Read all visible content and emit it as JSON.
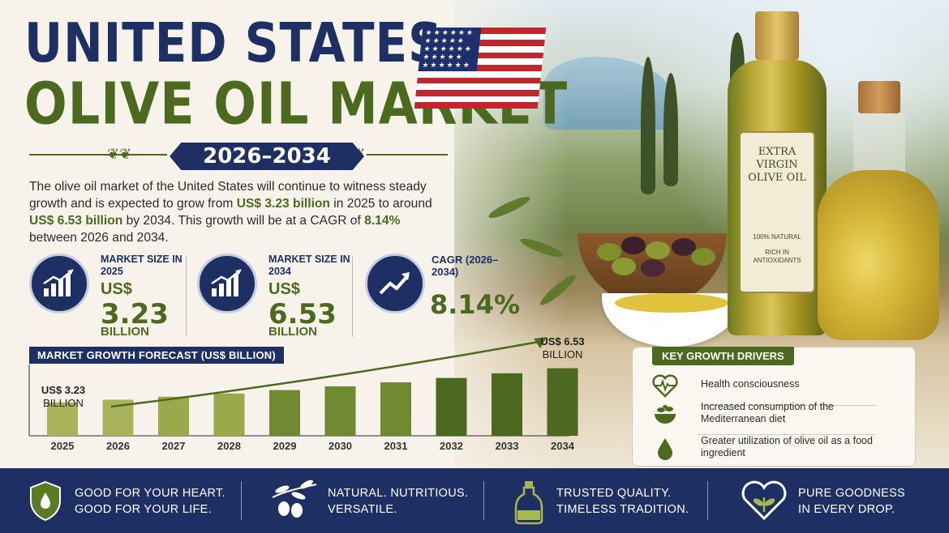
{
  "title": {
    "line1": "UNITED STATES",
    "line2": "OLIVE OIL MARKET",
    "years": "2026–2034"
  },
  "intro": {
    "p1": "The olive oil market of the United States will continue to witness steady growth and is expected to grow from ",
    "v1": "US$ 3.23 billion",
    "p2": " in 2025 to around ",
    "v2": "US$ 6.53 billion",
    "p3": " by 2034. This growth will be at a CAGR of ",
    "v3": "8.14%",
    "p4": " between 2026 and 2034."
  },
  "stats": [
    {
      "label": "MARKET SIZE IN 2025",
      "currency": "US$",
      "value": "3.23",
      "unit": "BILLION"
    },
    {
      "label": "MARKET SIZE IN 2034",
      "currency": "US$",
      "value": "6.53",
      "unit": "BILLION"
    },
    {
      "label": "CAGR (2026–2034)",
      "value": "8.14%"
    }
  ],
  "chart_data": {
    "type": "bar",
    "title": "MARKET GROWTH FORECAST (US$ BILLION)",
    "categories": [
      "2025",
      "2026",
      "2027",
      "2028",
      "2029",
      "2030",
      "2031",
      "2032",
      "2033",
      "2034"
    ],
    "values": [
      3.23,
      3.49,
      3.78,
      4.09,
      4.42,
      4.78,
      5.17,
      5.59,
      6.04,
      6.53
    ],
    "annotations": {
      "first": [
        "US$ 3.23",
        "BILLION"
      ],
      "last": [
        "US$ 6.53",
        "BILLION"
      ]
    },
    "colors": {
      "bar_light": "#a9b45a",
      "bar_dark": "#4b6a1f",
      "arrow": "#4b6a1f"
    },
    "grid": false
  },
  "drivers": {
    "title": "KEY GROWTH DRIVERS",
    "items": [
      {
        "icon": "heart-pulse-icon",
        "text": "Health consciousness"
      },
      {
        "icon": "salad-bowl-icon",
        "text": "Increased consumption of the Mediterranean diet"
      },
      {
        "icon": "oil-drop-icon",
        "text": "Greater utilization of olive oil as a food ingredient"
      }
    ]
  },
  "bottle_label": {
    "name": "EXTRA VIRGIN OLIVE OIL",
    "natural": "100% NATURAL",
    "rich": "RICH IN ANTIOXIDANTS"
  },
  "footer": [
    {
      "icon": "shield-drop-icon",
      "line1": "GOOD FOR YOUR HEART.",
      "line2": "GOOD FOR YOUR LIFE."
    },
    {
      "icon": "olive-branch-icon",
      "line1": "NATURAL. NUTRITIOUS.",
      "line2": "VERSATILE."
    },
    {
      "icon": "oil-bottle-icon",
      "line1": "TRUSTED QUALITY.",
      "line2": "TIMELESS TRADITION."
    },
    {
      "icon": "heart-leaf-icon",
      "line1": "PURE GOODNESS",
      "line2": "IN EVERY DROP."
    }
  ],
  "colors": {
    "navy": "#1e2f63",
    "olive": "#4b6a1f",
    "cream": "#f7f3ea"
  }
}
